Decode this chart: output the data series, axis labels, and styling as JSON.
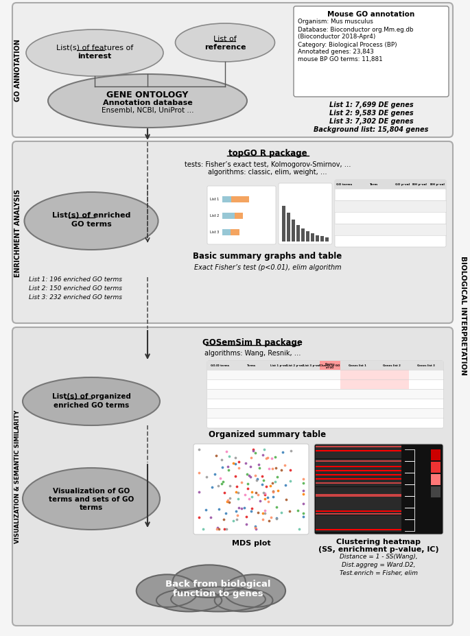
{
  "bg_color": "#f5f5f5",
  "section1_fc": "#eeeeee",
  "section2_fc": "#e8e8e8",
  "section3_fc": "#e4e4e4",
  "ellipse1_fc": "#d5d5d5",
  "ellipse2_fc": "#d5d5d5",
  "ellipse3_fc": "#c8c8c8",
  "ellipse4_fc": "#b8b8b8",
  "ellipse5_fc": "#b0b0b0",
  "ellipse6_fc": "#b0b0b0",
  "cloud_fc": "#999999",
  "cloud_ec": "#666666",
  "section_ec": "#aaaaaa",
  "box1_fc": "#ffffff",
  "box1_ec": "#888888",
  "section1_label": "GO ANNOTATION",
  "section2_label": "ENRICHMENT ANALYSIS",
  "section3_label": "VISUALIZATION & SEMANTIC SIMILARITY",
  "right_label": "BIOLOGICAL INTERPRETATION",
  "box1_title": "Mouse GO annotation",
  "box1_lines": [
    "Organism: Mus musculus",
    "Database: Bioconductor org.Mm.eg.db",
    "(Bioconductor 2018-Apr4)",
    "Category: Biological Process (BP)",
    "Annotated genes: 23,843",
    "mouse BP GO terms: 11,881"
  ],
  "box1_italic_lines": [
    "List 1: 7,699 DE genes",
    "List 2: 9,583 DE genes",
    "List 3: 7,302 DE genes",
    "Background list: 15,804 genes"
  ],
  "topgo_title": "topGO R package",
  "topgo_line1": "tests: Fisher’s exact test, Kolmogorov-Smirnov, …",
  "topgo_line2": "algorithms: classic, elim, weight, …",
  "basic_summary_label": "Basic summary graphs and table",
  "fisher_label": "Exact Fisher’s test (p<0.01), elim algorithm",
  "list_enriched_lines": [
    "List 1: 196 enriched GO terms",
    "List 2: 150 enriched GO terms",
    "List 3: 232 enriched GO terms"
  ],
  "gosem_title": "GOSemSim R package",
  "gosem_line1": "algorithms: Wang, Resnik, …",
  "org_summary_label": "Organized summary table",
  "mds_label": "MDS plot",
  "heatmap_line1": "Clustering heatmap",
  "heatmap_line2": "(SS, enrichment p-value, IC)",
  "heatmap_notes": [
    "Distance = 1 - SS(Wang),",
    "Dist.aggreg = Ward.D2,",
    "Test.enrich = Fisher, elim"
  ],
  "cloud_text1": "Back from biological",
  "cloud_text2": "function to genes",
  "mds_colors": [
    "#e41a1c",
    "#377eb8",
    "#4daf4a",
    "#984ea3",
    "#ff7f00",
    "#a65628",
    "#f781bf",
    "#999999",
    "#66c2a5",
    "#fc8d62"
  ]
}
